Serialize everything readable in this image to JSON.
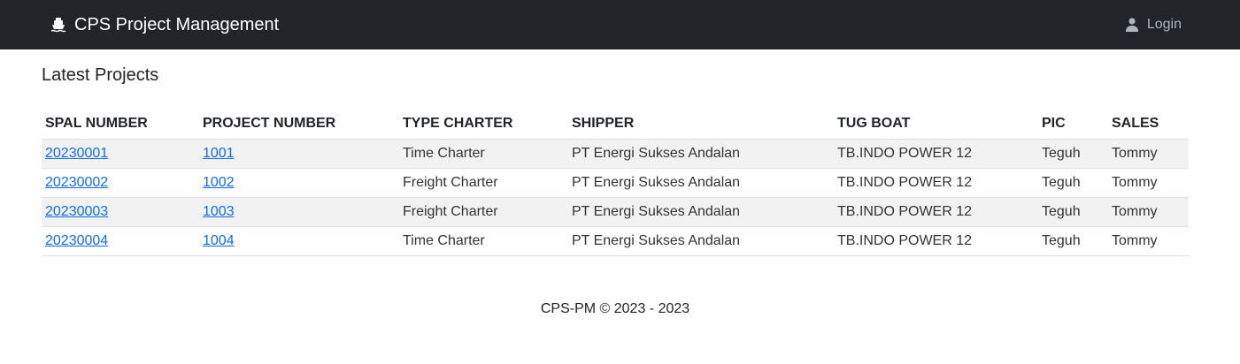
{
  "navbar": {
    "brand": "CPS Project Management",
    "login_label": "Login"
  },
  "page_title": "Latest Projects",
  "table": {
    "headers": [
      "SPAL NUMBER",
      "PROJECT NUMBER",
      "TYPE CHARTER",
      "SHIPPER",
      "TUG BOAT",
      "PIC",
      "SALES"
    ],
    "rows": [
      {
        "spal": "20230001",
        "project": "1001",
        "type": "Time Charter",
        "shipper": "PT Energi Sukses Andalan",
        "tug": "TB.INDO POWER 12",
        "pic": "Teguh",
        "sales": "Tommy"
      },
      {
        "spal": "20230002",
        "project": "1002",
        "type": "Freight Charter",
        "shipper": "PT Energi Sukses Andalan",
        "tug": "TB.INDO POWER 12",
        "pic": "Teguh",
        "sales": "Tommy"
      },
      {
        "spal": "20230003",
        "project": "1003",
        "type": "Freight Charter",
        "shipper": "PT Energi Sukses Andalan",
        "tug": "TB.INDO POWER 12",
        "pic": "Teguh",
        "sales": "Tommy"
      },
      {
        "spal": "20230004",
        "project": "1004",
        "type": "Time Charter",
        "shipper": "PT Energi Sukses Andalan",
        "tug": "TB.INDO POWER 12",
        "pic": "Teguh",
        "sales": "Tommy"
      }
    ]
  },
  "footer": "CPS-PM © 2023 - 2023",
  "colors": {
    "navbar_bg": "#212529",
    "link": "#0d6efd",
    "stripe": "#f2f2f2"
  },
  "icons": {
    "brand": "ship-icon",
    "login": "user-icon"
  }
}
